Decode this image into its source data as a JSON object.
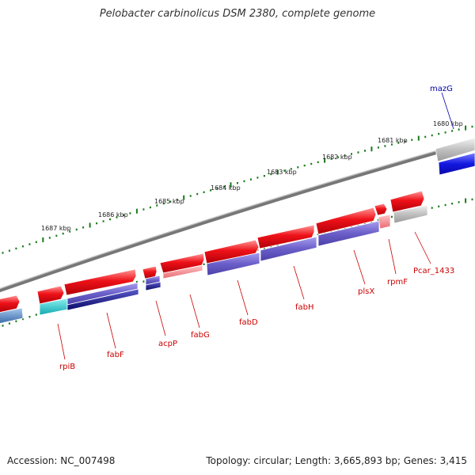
{
  "title": "Pelobacter carbinolicus DSM 2380, complete genome",
  "footer": {
    "accession": "Accession: NC_007498",
    "topology": "Topology: circular; Length: 3,665,893 bp; Genes: 3,415"
  },
  "colors": {
    "forward_red": "#e8111a",
    "reverse_red": "#f07a80",
    "purple": "#6b5fc8",
    "navy": "#10107a",
    "cyan": "#22c0c8",
    "steel": "#4a7fb8",
    "blue": "#1a1ee0",
    "gray": "#b9b9b9",
    "label_red": "#cc0000",
    "label_blue": "#0000aa",
    "tick_green": "#1a7a1a"
  },
  "scale_labels": [
    "1687 kbp",
    "1686 kbp",
    "1685 kbp",
    "1684 kbp",
    "1683 kbp",
    "1682 kbp",
    "1681 kbp",
    "1680 kbp"
  ],
  "genes": [
    {
      "name": "rpiB",
      "color": "label_red"
    },
    {
      "name": "fabF",
      "color": "label_red"
    },
    {
      "name": "acpP",
      "color": "label_red"
    },
    {
      "name": "fabG",
      "color": "label_red"
    },
    {
      "name": "fabD",
      "color": "label_red"
    },
    {
      "name": "fabH",
      "color": "label_red"
    },
    {
      "name": "plsX",
      "color": "label_red"
    },
    {
      "name": "rpmF",
      "color": "label_red"
    },
    {
      "name": "Pcar_1433",
      "color": "label_red"
    },
    {
      "name": "mazG",
      "color": "label_blue"
    }
  ]
}
